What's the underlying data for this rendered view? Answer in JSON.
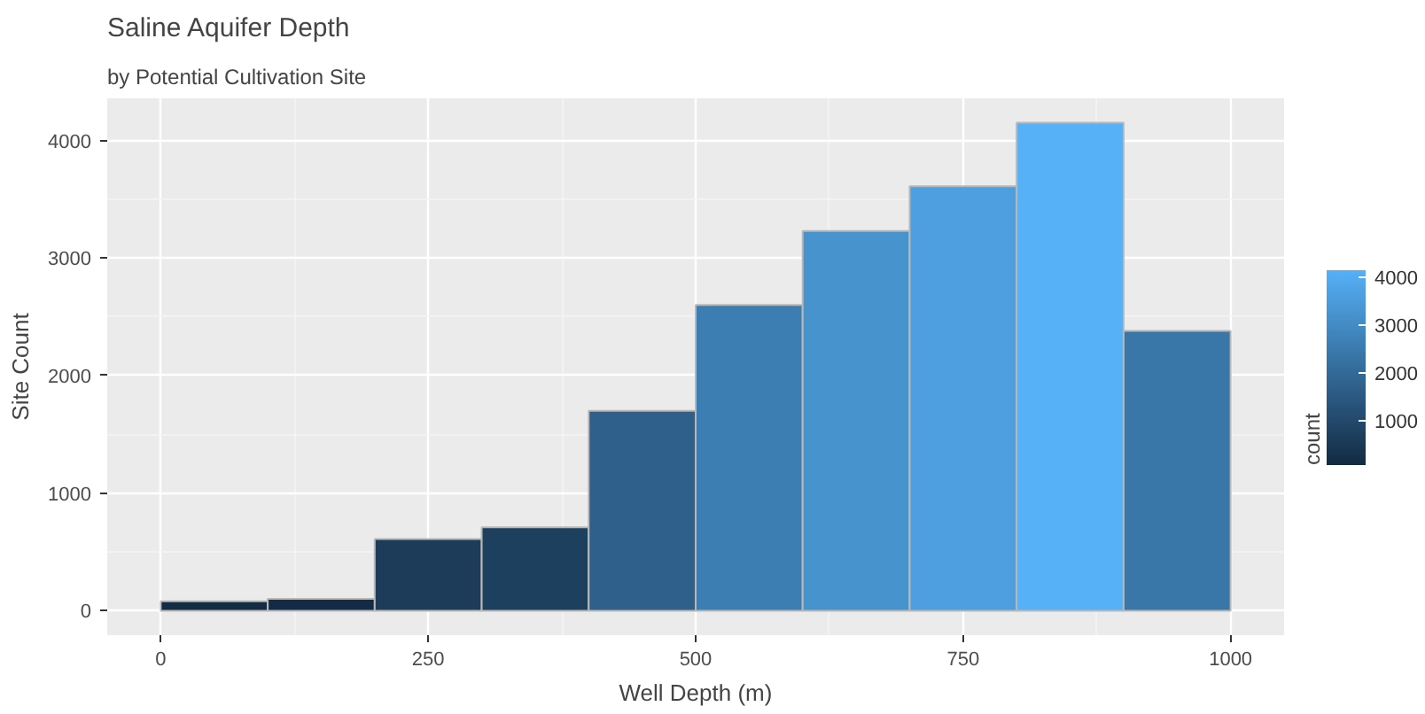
{
  "chart_data": {
    "type": "histogram",
    "title": "Saline Aquifer Depth",
    "subtitle": "by Potential Cultivation Site",
    "xlabel": "Well Depth (m)",
    "ylabel": "Site Count",
    "clabel": "count",
    "bins": [
      0,
      100,
      200,
      300,
      400,
      500,
      600,
      700,
      800,
      900,
      1000
    ],
    "values": [
      80,
      100,
      610,
      710,
      1700,
      2600,
      3230,
      3610,
      4150,
      2380
    ],
    "colors": [
      "#132b43",
      "#132b44",
      "#1c3c5a",
      "#1d405f",
      "#2e608b",
      "#3c7eb2",
      "#4793ce",
      "#4d9fdf",
      "#56b1f7",
      "#3977a9"
    ],
    "clim": [
      80,
      4150
    ],
    "cticks": [
      1000,
      2000,
      3000,
      4000
    ],
    "xlim": [
      -50,
      1050
    ],
    "ylim": [
      -208,
      4358
    ],
    "xticks": [
      0,
      250,
      500,
      750,
      1000
    ],
    "yticks": [
      0,
      1000,
      2000,
      3000,
      4000
    ],
    "grid": true
  }
}
